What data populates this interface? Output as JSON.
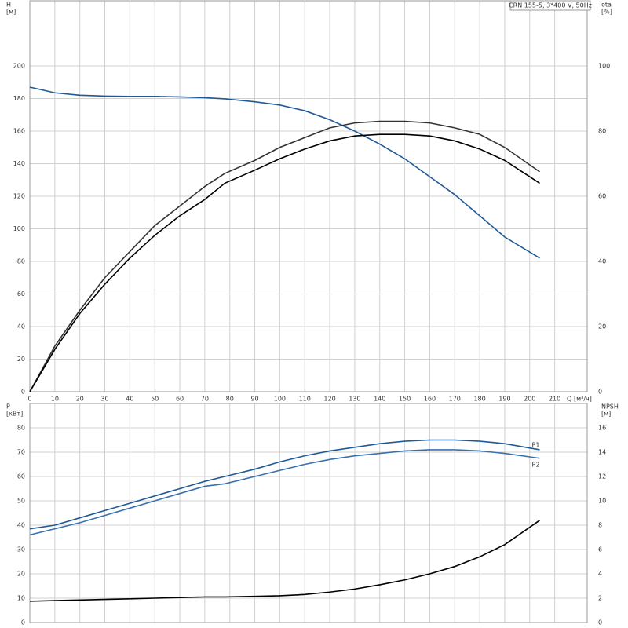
{
  "chart_data": [
    {
      "type": "line",
      "legend_box": "CRN 155-5, 3*400 V, 50Hz",
      "y_label": "H",
      "y_unit": "[м]",
      "y2_label": "eta",
      "y2_unit": "[%]",
      "x_label": "Q",
      "x_unit": "[м³/ч]",
      "x": [
        0,
        10,
        20,
        30,
        40,
        50,
        60,
        70,
        78,
        90,
        100,
        110,
        120,
        130,
        140,
        150,
        160,
        170,
        180,
        190,
        204
      ],
      "xlim": [
        0,
        223
      ],
      "xticks": [
        0,
        10,
        20,
        30,
        40,
        50,
        60,
        70,
        80,
        90,
        100,
        110,
        120,
        130,
        140,
        150,
        160,
        170,
        180,
        190,
        200,
        210
      ],
      "ylim": [
        0,
        240
      ],
      "yticks": [
        0,
        20,
        40,
        60,
        80,
        100,
        120,
        140,
        160,
        180,
        200
      ],
      "y2lim": [
        0,
        120
      ],
      "y2ticks": [
        0,
        20,
        40,
        60,
        80,
        100
      ],
      "grid": true,
      "series": [
        {
          "color": "#1f5a96",
          "values": [
            187,
            183.5,
            182,
            181.5,
            181.3,
            181.3,
            181,
            180.5,
            179.8,
            178,
            176,
            172.5,
            167,
            160,
            152,
            143,
            132,
            121,
            108,
            95,
            82
          ]
        },
        {
          "color": "#333333",
          "axis": "y2",
          "values": [
            0,
            14,
            25,
            35,
            43,
            51,
            57,
            63,
            67,
            71,
            75,
            78,
            81,
            82.5,
            83,
            83,
            82.5,
            81,
            79,
            75,
            67.5
          ]
        },
        {
          "color": "#000000",
          "axis": "y2",
          "values": [
            0,
            13,
            24,
            33,
            41,
            48,
            54,
            59,
            64,
            68,
            71.5,
            74.5,
            77,
            78.5,
            79,
            79,
            78.5,
            77,
            74.5,
            71,
            64
          ]
        }
      ]
    },
    {
      "type": "line",
      "y_label": "P",
      "y_unit": "[кВт]",
      "y2_label": "NPSH",
      "y2_unit": "[м]",
      "x": [
        0,
        10,
        20,
        30,
        40,
        50,
        60,
        70,
        78,
        90,
        100,
        110,
        120,
        130,
        140,
        150,
        160,
        170,
        180,
        190,
        204
      ],
      "xlim": [
        0,
        223
      ],
      "ylim": [
        0,
        90
      ],
      "yticks": [
        0,
        10,
        20,
        30,
        40,
        50,
        60,
        70,
        80
      ],
      "y2lim": [
        0,
        18
      ],
      "y2ticks": [
        0,
        2,
        4,
        6,
        8,
        10,
        12,
        14,
        16
      ],
      "grid": true,
      "series": [
        {
          "name": "P1",
          "color": "#1f5a96",
          "values": [
            38.5,
            40,
            43,
            46,
            49,
            52,
            55,
            58,
            60,
            63,
            66,
            68.5,
            70.5,
            72,
            73.5,
            74.5,
            75,
            75,
            74.5,
            73.5,
            71
          ]
        },
        {
          "name": "P2",
          "color": "#3a70b0",
          "values": [
            36,
            38.5,
            41,
            44,
            47,
            50,
            53,
            56,
            57,
            60,
            62.5,
            65,
            67,
            68.5,
            69.5,
            70.5,
            71,
            71,
            70.5,
            69.5,
            67.5
          ]
        },
        {
          "color": "#000000",
          "axis": "y2",
          "values": [
            1.75,
            1.8,
            1.85,
            1.9,
            1.95,
            2.0,
            2.05,
            2.1,
            2.1,
            2.15,
            2.2,
            2.3,
            2.5,
            2.75,
            3.1,
            3.5,
            4.0,
            4.6,
            5.4,
            6.4,
            8.4
          ]
        }
      ]
    }
  ]
}
